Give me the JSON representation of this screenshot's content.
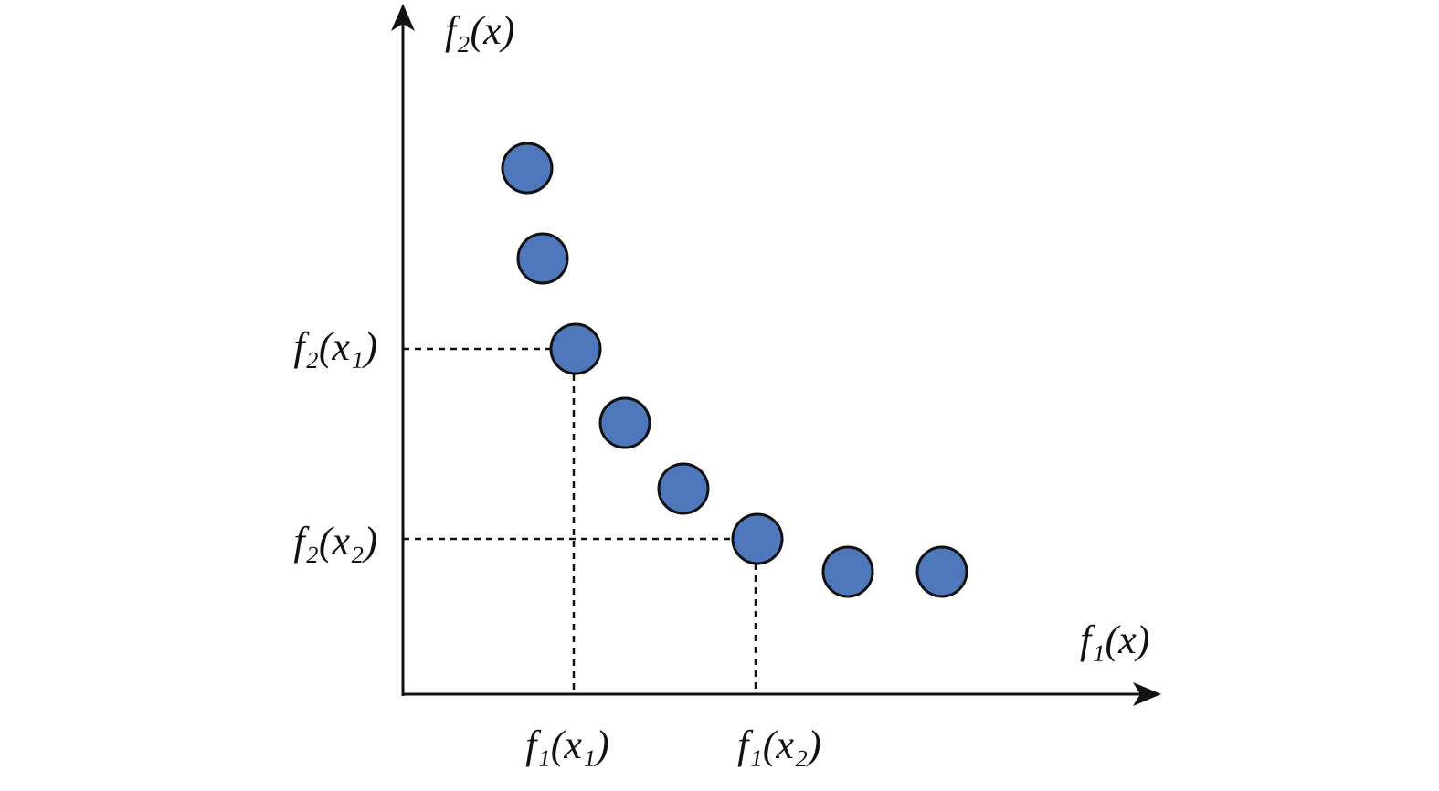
{
  "axes": {
    "y_label": "f₂(x)",
    "x_label": "f₁(x)"
  },
  "markers": {
    "y": [
      "f₂(x₁)",
      "f₂(x₂)"
    ],
    "x": [
      "f₁(x₁)",
      "f₁(x₂)"
    ]
  }
}
